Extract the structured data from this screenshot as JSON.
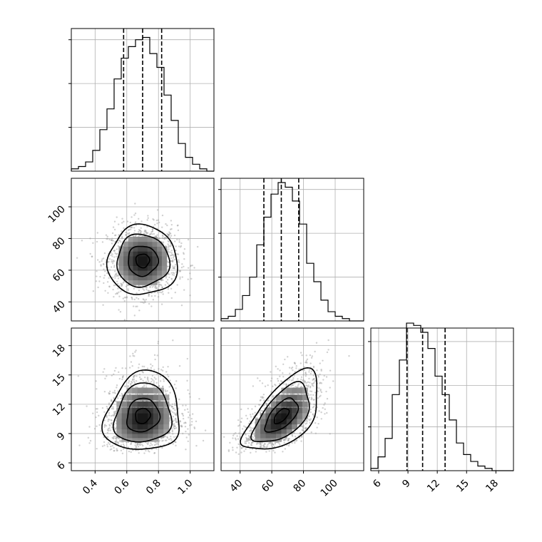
{
  "chart_data": {
    "type": "corner",
    "grid": true,
    "parameters": [
      {
        "index": 0,
        "range": [
          0.25,
          1.15
        ],
        "ticks": [
          0.4,
          0.6,
          0.8,
          1.0
        ],
        "tick_labels": [
          "0.4",
          "0.6",
          "0.8",
          "1.0"
        ],
        "quantiles": [
          0.58,
          0.7,
          0.82
        ]
      },
      {
        "index": 1,
        "range": [
          28,
          118
        ],
        "ticks": [
          40,
          60,
          80,
          100
        ],
        "tick_labels": [
          "40",
          "60",
          "80",
          "100"
        ],
        "quantiles": [
          55,
          66,
          77
        ]
      },
      {
        "index": 2,
        "range": [
          5.2,
          19.8
        ],
        "ticks": [
          6,
          9,
          12,
          15,
          18
        ],
        "tick_labels": [
          "6",
          "9",
          "12",
          "15",
          "18"
        ],
        "quantiles": [
          8.9,
          10.5,
          12.8
        ]
      }
    ],
    "histograms": [
      {
        "param": 0,
        "bin_edges": [
          0.25,
          0.295,
          0.34,
          0.385,
          0.43,
          0.475,
          0.52,
          0.565,
          0.61,
          0.655,
          0.7,
          0.745,
          0.79,
          0.835,
          0.88,
          0.925,
          0.97,
          1.015,
          1.06,
          1.105,
          1.15
        ],
        "counts": [
          1,
          2,
          4,
          9,
          18,
          27,
          40,
          49,
          54,
          57,
          58,
          51,
          45,
          33,
          22,
          12,
          6,
          3,
          1,
          0
        ],
        "ticks": [
          57,
          38,
          19
        ]
      },
      {
        "param": 1,
        "bin_edges": [
          28,
          32.5,
          37,
          41.5,
          46,
          50.5,
          55,
          59.5,
          64,
          68.5,
          73,
          77.5,
          82,
          86.5,
          91,
          95.5,
          100,
          104.5,
          109,
          113.5,
          118
        ],
        "counts": [
          1,
          2,
          5,
          11,
          19,
          33,
          45,
          55,
          60,
          58,
          52,
          42,
          25,
          17,
          9,
          4,
          2,
          1,
          0,
          0
        ],
        "ticks": [
          57,
          38,
          19
        ]
      },
      {
        "param": 2,
        "bin_edges": [
          5.2,
          5.93,
          6.66,
          7.39,
          8.12,
          8.85,
          9.58,
          10.31,
          11.04,
          11.77,
          12.5,
          13.23,
          13.96,
          14.69,
          15.42,
          16.15,
          16.88,
          17.61,
          18.34,
          19.07,
          19.8
        ],
        "counts": [
          1,
          6,
          14,
          33,
          48,
          64,
          63,
          60,
          53,
          41,
          33,
          22,
          12,
          7,
          4,
          2,
          1,
          0,
          0,
          0
        ],
        "ticks": [
          56,
          37,
          19
        ]
      }
    ],
    "joint": [
      {
        "x_param": 0,
        "y_param": 1,
        "mean": [
          0.7,
          66
        ],
        "sd": [
          0.11,
          11
        ],
        "corr": 0.0,
        "levels": [
          0.39,
          0.86,
          1.5,
          2.0
        ]
      },
      {
        "x_param": 0,
        "y_param": 2,
        "mean": [
          0.7,
          10.8
        ],
        "sd": [
          0.12,
          2.0
        ],
        "corr": 0.1,
        "skew_y": 0.55,
        "levels": [
          0.39,
          0.86,
          1.5,
          2.0
        ]
      },
      {
        "x_param": 1,
        "y_param": 2,
        "mean": [
          66,
          10.8
        ],
        "sd": [
          12,
          2.0
        ],
        "corr": 0.6,
        "skew_y": 0.55,
        "levels": [
          0.39,
          0.86,
          1.5,
          2.0
        ]
      }
    ]
  }
}
